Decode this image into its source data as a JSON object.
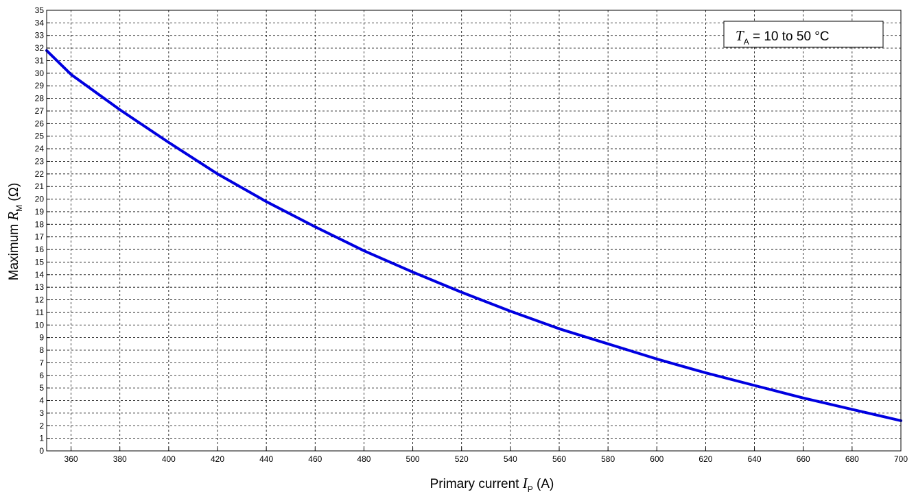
{
  "chart_data": {
    "type": "line",
    "xlabel": {
      "prefix": "Primary current ",
      "symbol": "I",
      "sub": "P",
      "unit": " (A)"
    },
    "ylabel": {
      "prefix": "Maximum ",
      "symbol": "R",
      "sub": "M",
      "unit": " (Ω)"
    },
    "xlim": [
      350,
      700
    ],
    "ylim": [
      0,
      35
    ],
    "xticks": [
      360,
      380,
      400,
      420,
      440,
      460,
      480,
      500,
      520,
      540,
      560,
      580,
      600,
      620,
      640,
      660,
      680,
      700
    ],
    "yticks": [
      0,
      1,
      2,
      3,
      4,
      5,
      6,
      7,
      8,
      9,
      10,
      11,
      12,
      13,
      14,
      15,
      16,
      17,
      18,
      19,
      20,
      21,
      22,
      23,
      24,
      25,
      26,
      27,
      28,
      29,
      30,
      31,
      32,
      33,
      34,
      35
    ],
    "grid": true,
    "legend": {
      "position": "top-right",
      "symbol": "T",
      "sub": "A",
      "text": " = 10 to 50 °C"
    },
    "series": [
      {
        "color": "#0000e0",
        "x": [
          350,
          360,
          380,
          400,
          420,
          440,
          460,
          480,
          500,
          520,
          540,
          560,
          580,
          600,
          620,
          640,
          660,
          680,
          700
        ],
        "y": [
          31.8,
          29.9,
          27.1,
          24.5,
          22.0,
          19.8,
          17.8,
          15.9,
          14.2,
          12.6,
          11.1,
          9.7,
          8.5,
          7.3,
          6.2,
          5.2,
          4.2,
          3.3,
          2.4
        ]
      }
    ]
  }
}
